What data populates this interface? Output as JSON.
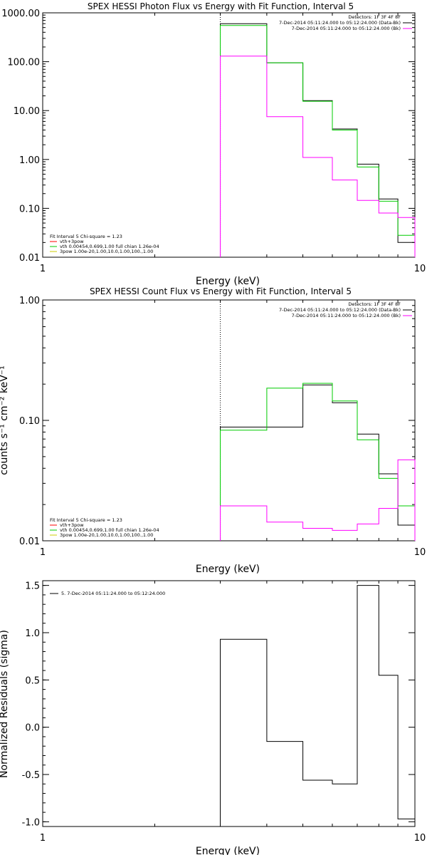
{
  "chart_data": [
    {
      "type": "line",
      "title": "SPEX HESSI Photon Flux vs Energy with Fit Function, Interval 5",
      "xlabel": "Energy (keV)",
      "ylabel": "",
      "xscale": "log",
      "yscale": "log",
      "xlim": [
        1,
        10
      ],
      "ylim": [
        0.01,
        1000
      ],
      "xticks": [
        "1",
        "10"
      ],
      "yticks": [
        {
          "v": 0.01,
          "label": "0.01"
        },
        {
          "v": 0.1,
          "label": "0.10"
        },
        {
          "v": 1,
          "label": "1.00"
        },
        {
          "v": 10,
          "label": "10.00"
        },
        {
          "v": 100,
          "label": "100.00"
        },
        {
          "v": 1000,
          "label": "1000.00"
        }
      ],
      "x_edges": [
        3,
        4,
        5,
        6,
        7,
        8,
        9,
        10
      ],
      "vline": {
        "x": 3,
        "style": "dotted"
      },
      "legend_tr": [
        {
          "text": "Detectors: 1F 3F 4F 8F",
          "color": null
        },
        {
          "text": "7-Dec-2014 05:11:24.000 to 05:12:24.000 (Data-Bk)",
          "color": "#000000"
        },
        {
          "text": "7-Dec-2014 05:11:24.000 to 05:12:24.000 (Bk)",
          "color": "#ff00ff"
        }
      ],
      "legend_bl": [
        {
          "text": "Fit Interval  5   Chi-square = 1.23",
          "color": null
        },
        {
          "text": "vth+3pow",
          "color": "#ff0000"
        },
        {
          "text": "vth 0.00454,0.699,1.00   full chian 1.26e-04",
          "color": "#00cc00"
        },
        {
          "text": "3pow 1.00e-20,1.00,10.0,1.00,100.,1.00",
          "color": "#cccc00"
        }
      ],
      "series": [
        {
          "name": "Data-Bk",
          "color": "#000000",
          "values": [
            600,
            95,
            16,
            4.2,
            0.8,
            0.155,
            0.02
          ]
        },
        {
          "name": "vth 0.00454,0.699,1.00",
          "color": "#00cc00",
          "values": [
            550,
            95,
            15.5,
            4.0,
            0.7,
            0.14,
            0.028
          ]
        },
        {
          "name": "Bk",
          "color": "#ff00ff",
          "values": [
            130,
            7.5,
            1.1,
            0.38,
            0.145,
            0.08,
            0.065
          ]
        }
      ]
    },
    {
      "type": "line",
      "title": "SPEX HESSI Count Flux vs Energy with Fit Function, Interval 5",
      "xlabel": "Energy (keV)",
      "ylabel": "counts s⁻¹ cm⁻² keV⁻¹",
      "xscale": "log",
      "yscale": "log",
      "xlim": [
        1,
        10
      ],
      "ylim": [
        0.01,
        1
      ],
      "xticks": [
        "1",
        "10"
      ],
      "yticks": [
        {
          "v": 0.01,
          "label": "0.01"
        },
        {
          "v": 0.1,
          "label": "0.10"
        },
        {
          "v": 1,
          "label": "1.00"
        }
      ],
      "x_edges": [
        3,
        4,
        5,
        6,
        7,
        8,
        9,
        10
      ],
      "vline": {
        "x": 3,
        "style": "dotted"
      },
      "legend_tr": [
        {
          "text": "Detectors: 1F 3F 4F 8F",
          "color": null
        },
        {
          "text": "7-Dec-2014 05:11:24.000 to 05:12:24.000 (Data-Bk)",
          "color": "#000000"
        },
        {
          "text": "7-Dec-2014 05:11:24.000 to 05:12:24.000 (Bk)",
          "color": "#ff00ff"
        }
      ],
      "legend_bl": [
        {
          "text": "Fit Interval  5   Chi-square = 1.23",
          "color": null
        },
        {
          "text": "vth+3pow",
          "color": "#ff0000"
        },
        {
          "text": "vth 0.00454,0.699,1.00   full chian 1.26e-04",
          "color": "#00cc00"
        },
        {
          "text": "3pow 1.00e-20,1.00,10.0,1.00,100.,1.00",
          "color": "#cccc00"
        }
      ],
      "series": [
        {
          "name": "Data-Bk",
          "color": "#000000",
          "values": [
            0.088,
            0.088,
            0.197,
            0.14,
            0.077,
            0.036,
            0.0135
          ]
        },
        {
          "name": "vth 0.00454,0.699,1.00",
          "color": "#00cc00",
          "values": [
            0.083,
            0.185,
            0.203,
            0.145,
            0.069,
            0.033,
            0.0195
          ]
        },
        {
          "name": "Bk",
          "color": "#ff00ff",
          "values": [
            0.0195,
            0.0143,
            0.0127,
            0.0122,
            0.0138,
            0.0186,
            0.047
          ]
        }
      ]
    },
    {
      "type": "line",
      "title": "",
      "xlabel": "Energy (keV)",
      "ylabel": "Normalized Residuals (sigma)",
      "xscale": "log",
      "yscale": "linear",
      "xlim": [
        1,
        10
      ],
      "ylim": [
        -1.05,
        1.55
      ],
      "xticks": [
        "1",
        "10"
      ],
      "yticks": [
        {
          "v": 1.5,
          "label": "1.5"
        },
        {
          "v": 1.0,
          "label": "1.0"
        },
        {
          "v": 0.5,
          "label": "0.5"
        },
        {
          "v": 0.0,
          "label": "0.0"
        },
        {
          "v": -0.5,
          "label": "-0.5"
        },
        {
          "v": -1.0,
          "label": "-1.0"
        }
      ],
      "x_edges": [
        3,
        4,
        5,
        6,
        7,
        8,
        9,
        10
      ],
      "legend_tl": [
        {
          "text": "5.  7-Dec-2014 05:11:24.000 to 05:12:24.000",
          "color": "#000000"
        }
      ],
      "series": [
        {
          "name": "5.  7-Dec-2014 05:11:24.000 to 05:12:24.000",
          "color": "#000000",
          "values": [
            0.93,
            -0.15,
            -0.56,
            -0.6,
            1.5,
            0.55,
            -0.97
          ]
        }
      ]
    }
  ]
}
